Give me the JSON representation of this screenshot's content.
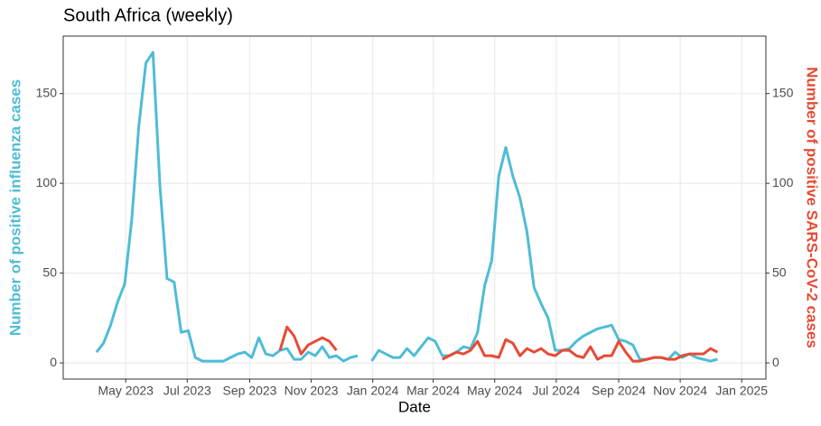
{
  "chart_data": {
    "type": "line",
    "title": "South Africa (weekly)",
    "xlabel": "Date",
    "ylabel": "Number of positive influenza cases",
    "y2label": "Number of positive SARS-CoV-2 cases",
    "x": [
      "2023-04-02",
      "2023-04-09",
      "2023-04-16",
      "2023-04-23",
      "2023-04-30",
      "2023-05-07",
      "2023-05-14",
      "2023-05-21",
      "2023-05-28",
      "2023-06-04",
      "2023-06-11",
      "2023-06-18",
      "2023-06-25",
      "2023-07-02",
      "2023-07-09",
      "2023-07-16",
      "2023-07-23",
      "2023-07-30",
      "2023-08-06",
      "2023-08-13",
      "2023-08-20",
      "2023-08-27",
      "2023-09-03",
      "2023-09-10",
      "2023-09-17",
      "2023-09-24",
      "2023-10-01",
      "2023-10-08",
      "2023-10-15",
      "2023-10-22",
      "2023-10-29",
      "2023-11-05",
      "2023-11-12",
      "2023-11-19",
      "2023-11-26",
      "2023-12-03",
      "2023-12-10",
      "2023-12-17",
      "2023-12-24",
      "2023-12-31",
      "2024-01-07",
      "2024-01-14",
      "2024-01-21",
      "2024-01-28",
      "2024-02-04",
      "2024-02-11",
      "2024-02-18",
      "2024-02-25",
      "2024-03-03",
      "2024-03-10",
      "2024-03-17",
      "2024-03-24",
      "2024-03-31",
      "2024-04-07",
      "2024-04-14",
      "2024-04-21",
      "2024-04-28",
      "2024-05-05",
      "2024-05-12",
      "2024-05-19",
      "2024-05-26",
      "2024-06-02",
      "2024-06-09",
      "2024-06-16",
      "2024-06-23",
      "2024-06-30",
      "2024-07-07",
      "2024-07-14",
      "2024-07-21",
      "2024-07-28",
      "2024-08-04",
      "2024-08-11",
      "2024-08-18",
      "2024-08-25",
      "2024-09-01",
      "2024-09-08",
      "2024-09-15",
      "2024-09-22",
      "2024-09-29",
      "2024-10-06",
      "2024-10-13",
      "2024-10-20",
      "2024-10-27",
      "2024-11-03",
      "2024-11-10",
      "2024-11-17",
      "2024-11-24",
      "2024-12-01",
      "2024-12-08",
      "2024-12-15",
      "2024-12-22"
    ],
    "series": [
      {
        "name": "Influenza",
        "color": "#4fbcd6",
        "axis": "y",
        "values": [
          6,
          11,
          21,
          34,
          44,
          80,
          132,
          167,
          173,
          98,
          47,
          45,
          17,
          18,
          3,
          1,
          1,
          1,
          1,
          3,
          5,
          6,
          3,
          14,
          5,
          4,
          7,
          8,
          2,
          2,
          6,
          4,
          9,
          3,
          4,
          1,
          3,
          4,
          null,
          1,
          7,
          5,
          3,
          3,
          8,
          4,
          9,
          14,
          12,
          4,
          4,
          6,
          9,
          8,
          17,
          43,
          57,
          104,
          120,
          104,
          92,
          73,
          42,
          33,
          25,
          7,
          7,
          8,
          12,
          15,
          17,
          19,
          20,
          21,
          13,
          12,
          10,
          2,
          2,
          3,
          3,
          2,
          6,
          3,
          5,
          3,
          2,
          1,
          2,
          null,
          null
        ]
      },
      {
        "name": "SARS-CoV-2",
        "color": "#e64b35",
        "axis": "y2",
        "values": [
          null,
          null,
          null,
          null,
          null,
          null,
          null,
          null,
          null,
          null,
          null,
          null,
          null,
          null,
          null,
          null,
          null,
          null,
          null,
          null,
          null,
          null,
          null,
          null,
          null,
          null,
          7,
          20,
          15,
          5,
          10,
          12,
          14,
          12,
          7,
          null,
          null,
          null,
          null,
          null,
          null,
          null,
          null,
          null,
          null,
          null,
          null,
          null,
          null,
          2,
          4,
          6,
          5,
          7,
          12,
          4,
          4,
          3,
          13,
          11,
          4,
          8,
          6,
          8,
          5,
          4,
          7,
          7,
          4,
          3,
          9,
          2,
          4,
          4,
          12,
          6,
          1,
          1,
          2,
          3,
          3,
          2,
          2,
          4,
          5,
          5,
          5,
          8,
          6,
          null,
          null
        ]
      }
    ],
    "xlim": [
      "2023-02-28",
      "2025-01-25"
    ],
    "xticks": [
      {
        "value": "2023-05-01",
        "label": "May 2023"
      },
      {
        "value": "2023-07-01",
        "label": "Jul 2023"
      },
      {
        "value": "2023-09-01",
        "label": "Sep 2023"
      },
      {
        "value": "2023-11-01",
        "label": "Nov 2023"
      },
      {
        "value": "2024-01-01",
        "label": "Jan 2024"
      },
      {
        "value": "2024-03-01",
        "label": "Mar 2024"
      },
      {
        "value": "2024-05-01",
        "label": "May 2024"
      },
      {
        "value": "2024-07-01",
        "label": "Jul 2024"
      },
      {
        "value": "2024-09-01",
        "label": "Sep 2024"
      },
      {
        "value": "2024-11-01",
        "label": "Nov 2024"
      },
      {
        "value": "2025-01-01",
        "label": "Jan 2025"
      }
    ],
    "ylim": [
      -9,
      182
    ],
    "yticks": [
      0,
      50,
      100,
      150
    ],
    "y2lim": [
      -9,
      182
    ],
    "y2ticks": [
      0,
      50,
      100,
      150
    ],
    "grid": true
  }
}
